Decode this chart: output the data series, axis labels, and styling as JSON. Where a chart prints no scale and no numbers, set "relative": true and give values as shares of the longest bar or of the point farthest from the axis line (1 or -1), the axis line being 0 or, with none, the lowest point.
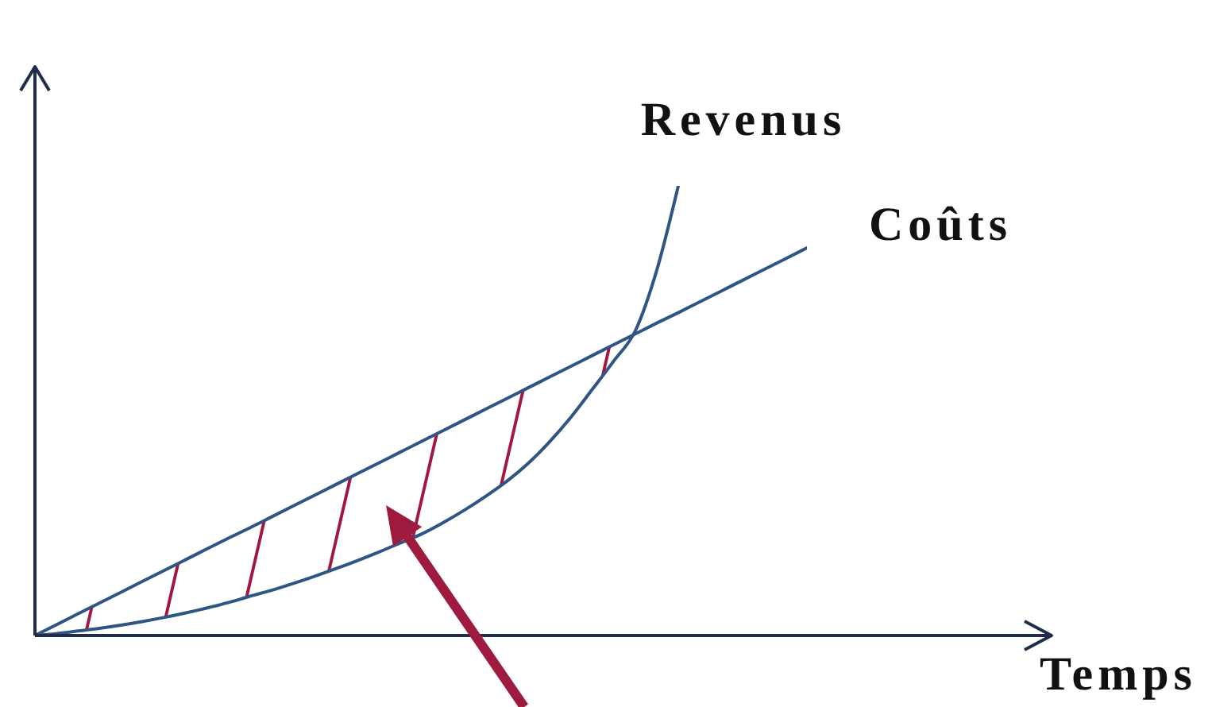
{
  "chart_data": {
    "type": "line",
    "relative": true,
    "xlabel": "Temps",
    "categories": [
      null,
      null,
      null,
      null,
      null,
      null,
      null,
      null,
      null,
      null,
      null,
      null,
      null,
      null,
      null,
      null,
      null,
      null,
      null,
      null,
      null,
      null,
      null,
      null,
      null,
      null,
      null,
      null,
      null,
      null,
      null,
      null,
      null,
      null,
      null,
      null,
      null
    ],
    "series": [
      {
        "name": "Revenus",
        "color": "#2f5584",
        "values": [
          0,
          0.004,
          0.01,
          0.016,
          0.023,
          0.031,
          0.04,
          0.05,
          0.061,
          0.073,
          0.087,
          0.1,
          0.115,
          0.131,
          0.148,
          0.166,
          0.185,
          0.205,
          0.225,
          0.25,
          0.278,
          0.309,
          0.343,
          0.383,
          0.431,
          0.486,
          0.548,
          0.611,
          0.678,
          0.813,
          1,
          null,
          null,
          null,
          null,
          null,
          null
        ]
      },
      {
        "name": "Coûts",
        "color": "#2f5584",
        "values": [
          0,
          0.024,
          0.048,
          0.072,
          0.096,
          0.12,
          0.144,
          0.168,
          0.192,
          0.216,
          0.239,
          0.263,
          0.287,
          0.311,
          0.335,
          0.359,
          0.383,
          0.407,
          0.431,
          0.455,
          0.479,
          0.503,
          0.527,
          0.551,
          0.575,
          0.599,
          0.623,
          0.647,
          0.671,
          0.695,
          0.718,
          0.742,
          0.766,
          0.79,
          0.814,
          0.838,
          0.862
        ]
      }
    ]
  }
}
